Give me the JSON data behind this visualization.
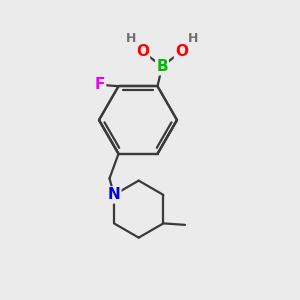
{
  "bg_color": "#ebebeb",
  "bond_color": "#3a3a3a",
  "bond_width": 1.6,
  "B_color": "#00bb00",
  "O_color": "#ff0000",
  "H_color": "#707070",
  "F_color": "#ee00ee",
  "N_color": "#0000ee",
  "font_size_atom": 11,
  "font_size_H": 9,
  "xlim": [
    0,
    10
  ],
  "ylim": [
    0,
    10
  ]
}
